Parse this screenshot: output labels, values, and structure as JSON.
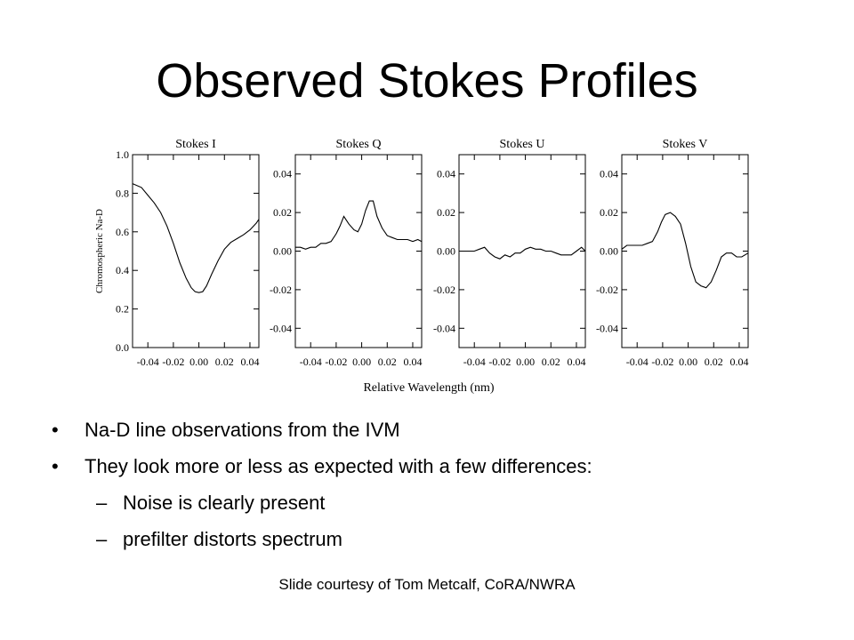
{
  "slide": {
    "title": "Observed Stokes Profiles",
    "credit": "Slide courtesy of Tom Metcalf, CoRA/NWRA",
    "bullets": [
      {
        "level": 1,
        "marker": "•",
        "text": "Na-D line observations from the IVM"
      },
      {
        "level": 1,
        "marker": "•",
        "text": "They look more or less as expected with a few differences:"
      },
      {
        "level": 2,
        "marker": "–",
        "text": "Noise is clearly present"
      },
      {
        "level": 2,
        "marker": "–",
        "text": "prefilter distorts spectrum"
      }
    ]
  },
  "figure": {
    "xlabel": "Relative Wavelength (nm)"
  },
  "chart_data": [
    {
      "type": "line",
      "title": "Stokes I",
      "ylabel": "Chromospheric Na-D",
      "xlim": [
        -0.052,
        0.047
      ],
      "ylim": [
        0.0,
        1.0
      ],
      "xticks": [
        -0.04,
        -0.02,
        0.0,
        0.02,
        0.04
      ],
      "xtick_labels": [
        "-0.04",
        "-0.02",
        "0.00",
        "0.02",
        "0.04"
      ],
      "yticks": [
        0.0,
        0.2,
        0.4,
        0.6,
        0.8,
        1.0
      ],
      "ytick_labels": [
        "0.0",
        "0.2",
        "0.4",
        "0.6",
        "0.8",
        "1.0"
      ],
      "series": [
        {
          "x": [
            -0.052,
            -0.045,
            -0.04,
            -0.035,
            -0.03,
            -0.025,
            -0.02,
            -0.015,
            -0.01,
            -0.006,
            -0.003,
            0.0,
            0.003,
            0.006,
            0.01,
            0.015,
            0.02,
            0.025,
            0.03,
            0.035,
            0.04,
            0.045,
            0.047
          ],
          "y": [
            0.85,
            0.83,
            0.79,
            0.75,
            0.7,
            0.63,
            0.54,
            0.44,
            0.36,
            0.31,
            0.29,
            0.285,
            0.29,
            0.32,
            0.38,
            0.45,
            0.51,
            0.545,
            0.565,
            0.585,
            0.61,
            0.645,
            0.665
          ]
        }
      ]
    },
    {
      "type": "line",
      "title": "Stokes Q",
      "xlim": [
        -0.052,
        0.047
      ],
      "ylim": [
        -0.05,
        0.05
      ],
      "xticks": [
        -0.04,
        -0.02,
        0.0,
        0.02,
        0.04
      ],
      "xtick_labels": [
        "-0.04",
        "-0.02",
        "0.00",
        "0.02",
        "0.04"
      ],
      "yticks": [
        -0.04,
        -0.02,
        0.0,
        0.02,
        0.04
      ],
      "ytick_labels": [
        "-0.04",
        "-0.02",
        "0.00",
        "0.02",
        "0.04"
      ],
      "series": [
        {
          "x": [
            -0.052,
            -0.048,
            -0.044,
            -0.04,
            -0.036,
            -0.032,
            -0.028,
            -0.024,
            -0.02,
            -0.017,
            -0.014,
            -0.01,
            -0.006,
            -0.003,
            0.0,
            0.003,
            0.006,
            0.009,
            0.012,
            0.016,
            0.02,
            0.024,
            0.028,
            0.032,
            0.036,
            0.04,
            0.044,
            0.047
          ],
          "y": [
            0.002,
            0.002,
            0.001,
            0.002,
            0.002,
            0.004,
            0.004,
            0.005,
            0.009,
            0.013,
            0.018,
            0.014,
            0.011,
            0.01,
            0.014,
            0.021,
            0.026,
            0.026,
            0.018,
            0.012,
            0.008,
            0.007,
            0.006,
            0.006,
            0.006,
            0.005,
            0.006,
            0.005
          ]
        }
      ]
    },
    {
      "type": "line",
      "title": "Stokes U",
      "xlim": [
        -0.052,
        0.047
      ],
      "ylim": [
        -0.05,
        0.05
      ],
      "xticks": [
        -0.04,
        -0.02,
        0.0,
        0.02,
        0.04
      ],
      "xtick_labels": [
        "-0.04",
        "-0.02",
        "0.00",
        "0.02",
        "0.04"
      ],
      "yticks": [
        -0.04,
        -0.02,
        0.0,
        0.02,
        0.04
      ],
      "ytick_labels": [
        "-0.04",
        "-0.02",
        "0.00",
        "0.02",
        "0.04"
      ],
      "series": [
        {
          "x": [
            -0.052,
            -0.048,
            -0.044,
            -0.04,
            -0.036,
            -0.032,
            -0.028,
            -0.024,
            -0.02,
            -0.016,
            -0.012,
            -0.008,
            -0.004,
            0.0,
            0.004,
            0.008,
            0.012,
            0.016,
            0.02,
            0.024,
            0.028,
            0.032,
            0.036,
            0.04,
            0.044,
            0.047
          ],
          "y": [
            0.0,
            0.0,
            0.0,
            0.0,
            0.001,
            0.002,
            -0.001,
            -0.003,
            -0.004,
            -0.002,
            -0.003,
            -0.001,
            -0.001,
            0.001,
            0.002,
            0.001,
            0.001,
            0.0,
            0.0,
            -0.001,
            -0.002,
            -0.002,
            -0.002,
            0.0,
            0.002,
            0.0
          ]
        }
      ]
    },
    {
      "type": "line",
      "title": "Stokes V",
      "xlim": [
        -0.052,
        0.047
      ],
      "ylim": [
        -0.05,
        0.05
      ],
      "xticks": [
        -0.04,
        -0.02,
        0.0,
        0.02,
        0.04
      ],
      "xtick_labels": [
        "-0.04",
        "-0.02",
        "0.00",
        "0.02",
        "0.04"
      ],
      "yticks": [
        -0.04,
        -0.02,
        0.0,
        0.02,
        0.04
      ],
      "ytick_labels": [
        "-0.04",
        "-0.02",
        "0.00",
        "0.02",
        "0.04"
      ],
      "series": [
        {
          "x": [
            -0.052,
            -0.048,
            -0.044,
            -0.04,
            -0.036,
            -0.032,
            -0.028,
            -0.024,
            -0.021,
            -0.018,
            -0.014,
            -0.01,
            -0.006,
            -0.002,
            0.002,
            0.006,
            0.01,
            0.014,
            0.018,
            0.022,
            0.026,
            0.03,
            0.034,
            0.038,
            0.042,
            0.047
          ],
          "y": [
            0.001,
            0.003,
            0.003,
            0.003,
            0.003,
            0.004,
            0.005,
            0.01,
            0.015,
            0.019,
            0.02,
            0.018,
            0.014,
            0.004,
            -0.008,
            -0.016,
            -0.018,
            -0.019,
            -0.016,
            -0.01,
            -0.003,
            -0.001,
            -0.001,
            -0.003,
            -0.003,
            -0.001
          ]
        }
      ]
    }
  ]
}
